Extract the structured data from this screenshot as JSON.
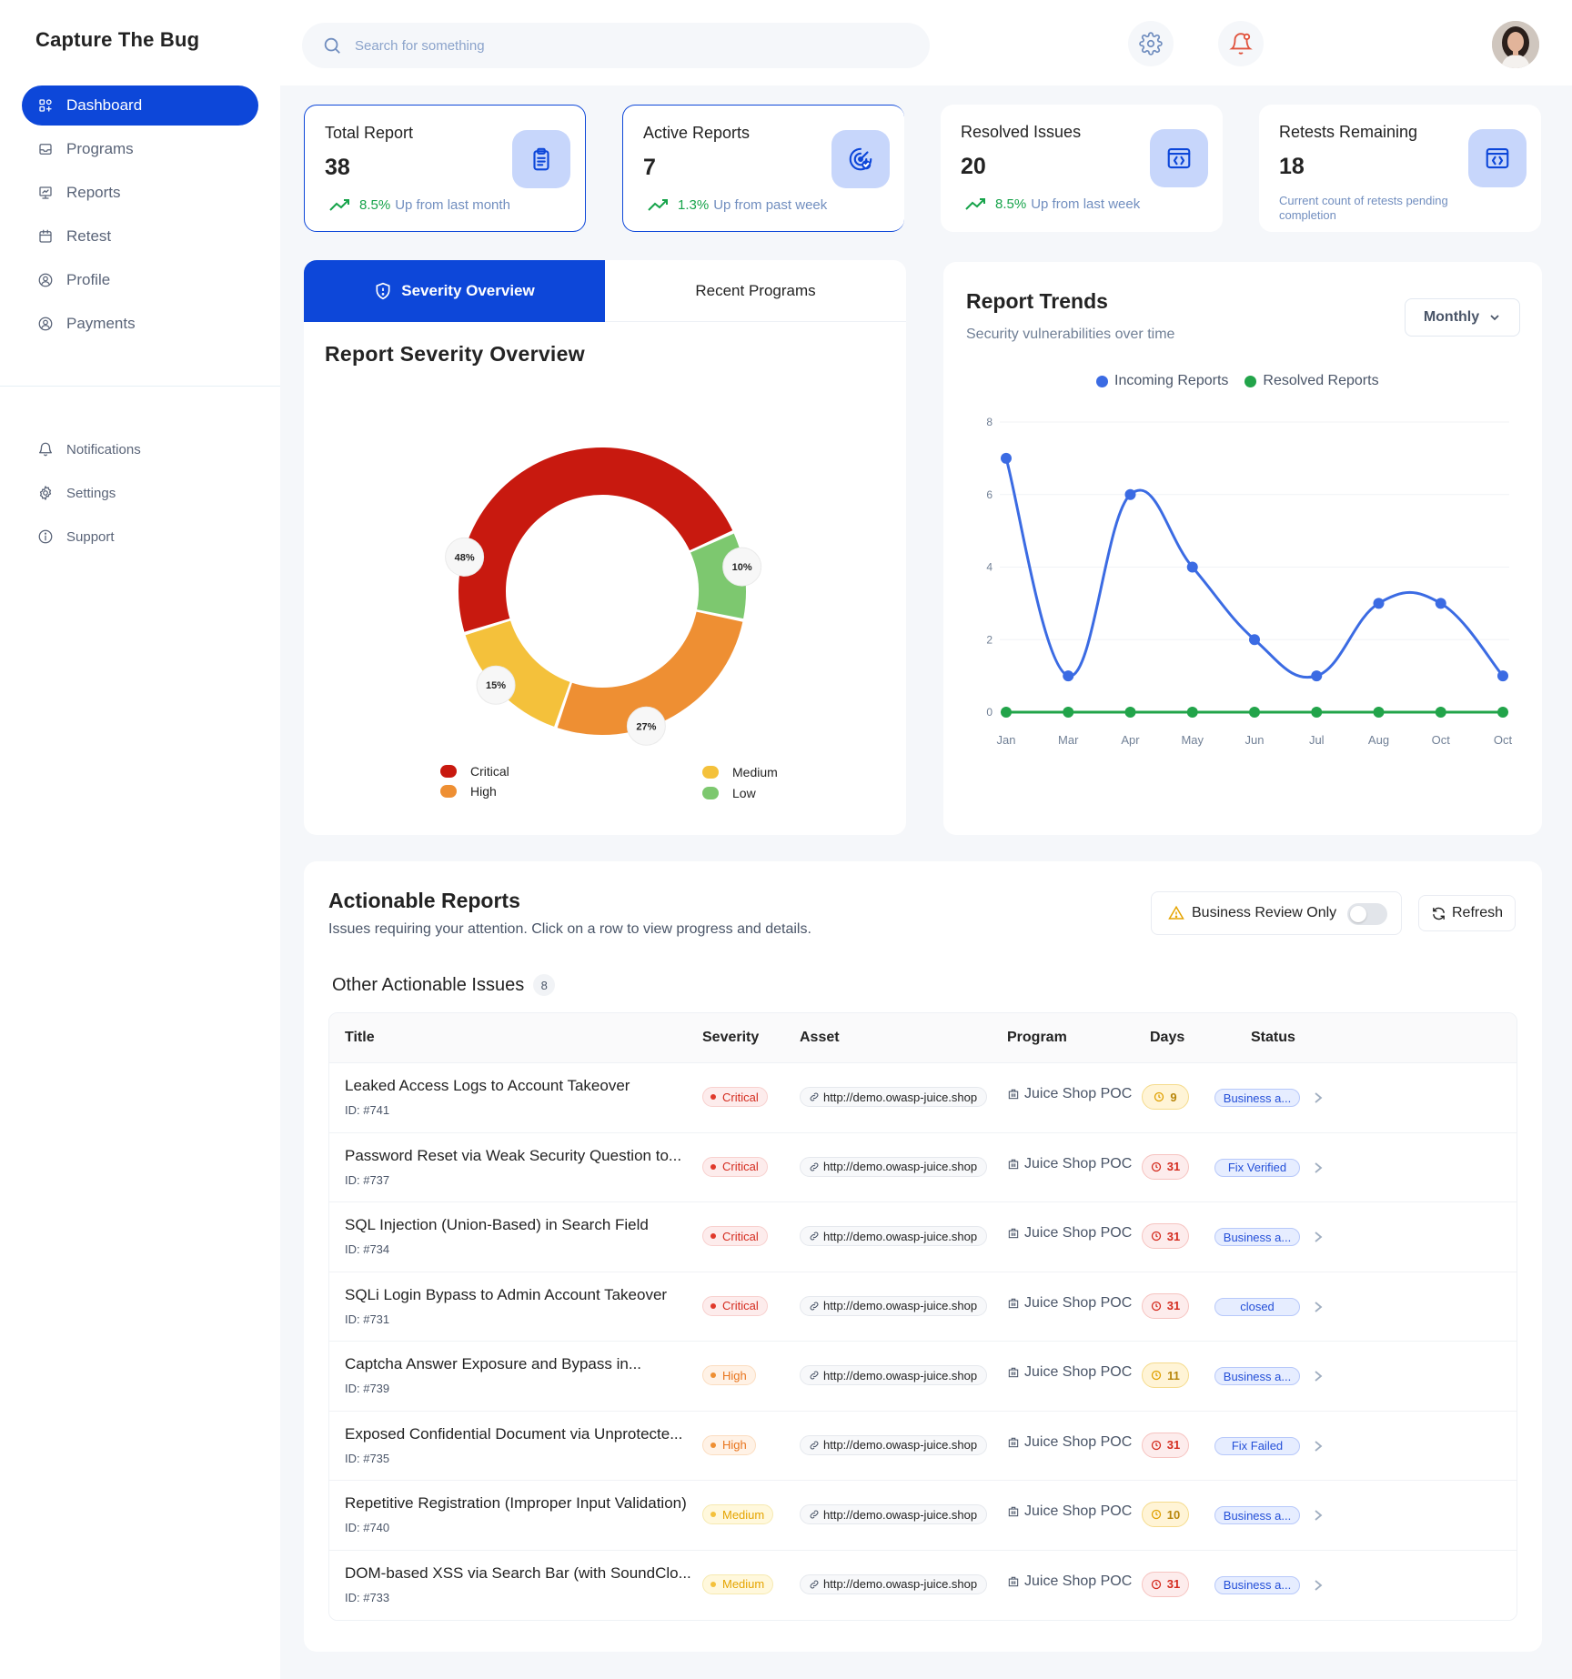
{
  "brand": "Capture The Bug",
  "nav": [
    {
      "label": "Dashboard",
      "icon": "dashboard-icon",
      "active": true
    },
    {
      "label": "Programs",
      "icon": "programs-icon"
    },
    {
      "label": "Reports",
      "icon": "reports-icon"
    },
    {
      "label": "Retest",
      "icon": "calendar-icon"
    },
    {
      "label": "Profile",
      "icon": "profile-icon"
    },
    {
      "label": "Payments",
      "icon": "payments-icon"
    }
  ],
  "nav_secondary": [
    {
      "label": "Notifications",
      "icon": "bell-icon"
    },
    {
      "label": "Settings",
      "icon": "gear-icon"
    },
    {
      "label": "Support",
      "icon": "info-icon"
    }
  ],
  "search": {
    "placeholder": "Search for something"
  },
  "stats": [
    {
      "label": "Total Report",
      "value": "38",
      "pct": "8.5%",
      "trend_text": "Up from last month",
      "icon": "clipboard-icon"
    },
    {
      "label": "Active Reports",
      "value": "7",
      "pct": "1.3%",
      "trend_text": "Up from past week",
      "icon": "radar-check-icon"
    },
    {
      "label": "Resolved Issues",
      "value": "20",
      "pct": "8.5%",
      "trend_text": "Up from last week",
      "icon": "code-window-icon"
    },
    {
      "label": "Retests Remaining",
      "value": "18",
      "note": "Current count of retests pending completion",
      "icon": "code-window-icon"
    }
  ],
  "severity": {
    "tabs": [
      "Severity Overview",
      "Recent Programs"
    ],
    "title": "Report Severity Overview",
    "legend": [
      "Critical",
      "High",
      "Medium",
      "Low"
    ],
    "colors": {
      "Critical": "#C8190F",
      "High": "#EE8F33",
      "Medium": "#F4C13B",
      "Low": "#7DC86F"
    }
  },
  "trends": {
    "title": "Report Trends",
    "subtitle": "Security vulnerabilities over time",
    "dropdown": "Monthly",
    "legend": [
      "Incoming Reports",
      "Resolved Reports"
    ]
  },
  "chart_data": [
    {
      "type": "pie",
      "title": "Report Severity Overview",
      "categories": [
        "Critical",
        "Low",
        "High",
        "Medium"
      ],
      "values": [
        48,
        10,
        27,
        15
      ],
      "labels": [
        "48%",
        "10%",
        "27%",
        "15%"
      ]
    },
    {
      "type": "line",
      "title": "Report Trends",
      "subtitle": "Security vulnerabilities over time",
      "x": [
        "Jan",
        "Mar",
        "Apr",
        "May",
        "Jun",
        "Jul",
        "Aug",
        "Oct",
        "Oct"
      ],
      "yticks": [
        "0",
        "2",
        "4",
        "6",
        "8"
      ],
      "ylim": [
        0,
        8
      ],
      "series": [
        {
          "name": "Incoming Reports",
          "color": "#3B6BE3",
          "values": [
            7,
            1,
            6,
            4,
            2,
            1,
            3,
            3,
            1
          ]
        },
        {
          "name": "Resolved Reports",
          "color": "#22A44A",
          "values": [
            0,
            0,
            0,
            0,
            0,
            0,
            0,
            0,
            0
          ]
        }
      ],
      "legend_position": "top",
      "grid": true
    }
  ],
  "actionable": {
    "title": "Actionable Reports",
    "subtitle": "Issues requiring your attention. Click on a row to view progress and details.",
    "toggle_label": "Business Review Only",
    "refresh_label": "Refresh",
    "section_title": "Other Actionable Issues",
    "count": "8",
    "columns": [
      "Title",
      "Severity",
      "Asset",
      "Program",
      "Days",
      "Status"
    ],
    "rows": [
      {
        "title": "Leaked Access Logs to Account Takeover",
        "id": "ID: #741",
        "severity": "Critical",
        "asset": "http://demo.owasp-juice.shop",
        "program": "Juice Shop POC",
        "days": "9",
        "days_level": "warn",
        "status": "Business a..."
      },
      {
        "title": "Password Reset via Weak Security Question to...",
        "id": "ID: #737",
        "severity": "Critical",
        "asset": "http://demo.owasp-juice.shop",
        "program": "Juice Shop POC",
        "days": "31",
        "days_level": "danger",
        "status": "Fix Verified"
      },
      {
        "title": "SQL Injection (Union-Based) in Search Field",
        "id": "ID: #734",
        "severity": "Critical",
        "asset": "http://demo.owasp-juice.shop",
        "program": "Juice Shop POC",
        "days": "31",
        "days_level": "danger",
        "status": "Business a..."
      },
      {
        "title": "SQLi Login Bypass to Admin Account Takeover",
        "id": "ID: #731",
        "severity": "Critical",
        "asset": "http://demo.owasp-juice.shop",
        "program": "Juice Shop POC",
        "days": "31",
        "days_level": "danger",
        "status": "closed"
      },
      {
        "title": "Captcha Answer Exposure and Bypass in...",
        "id": "ID: #739",
        "severity": "High",
        "asset": "http://demo.owasp-juice.shop",
        "program": "Juice Shop POC",
        "days": "11",
        "days_level": "warn",
        "status": "Business a..."
      },
      {
        "title": "Exposed Confidential Document via Unprotecte...",
        "id": "ID: #735",
        "severity": "High",
        "asset": "http://demo.owasp-juice.shop",
        "program": "Juice Shop POC",
        "days": "31",
        "days_level": "danger",
        "status": "Fix Failed"
      },
      {
        "title": "Repetitive Registration (Improper Input Validation)",
        "id": "ID: #740",
        "severity": "Medium",
        "asset": "http://demo.owasp-juice.shop",
        "program": "Juice Shop POC",
        "days": "10",
        "days_level": "warn",
        "status": "Business a..."
      },
      {
        "title": "DOM-based XSS via Search Bar (with SoundClo...",
        "id": "ID: #733",
        "severity": "Medium",
        "asset": "http://demo.owasp-juice.shop",
        "program": "Juice Shop POC",
        "days": "31",
        "days_level": "danger",
        "status": "Business a..."
      }
    ]
  }
}
